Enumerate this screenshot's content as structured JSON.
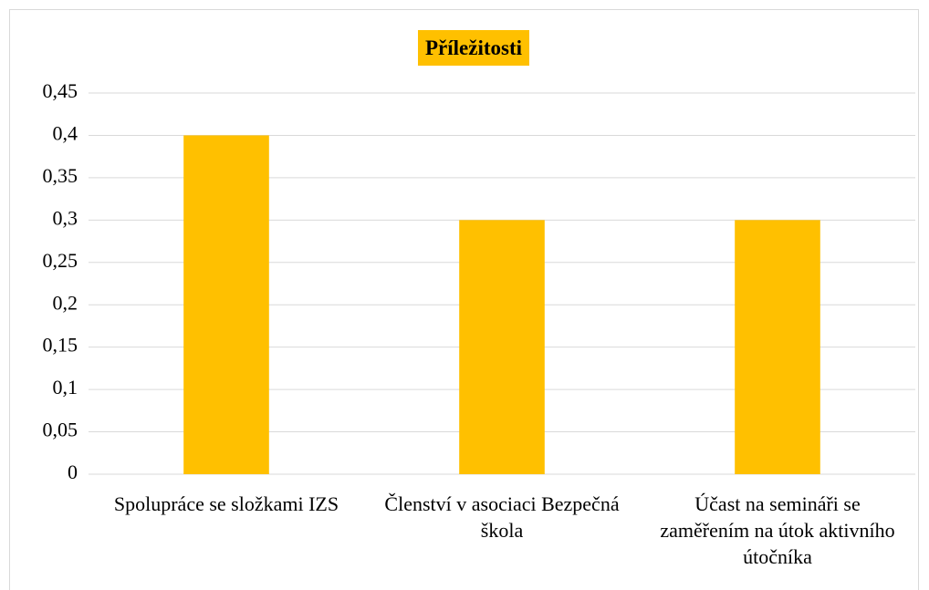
{
  "chart_data": {
    "type": "bar",
    "title": "Příležitosti",
    "categories": [
      "Spolupráce se složkami IZS",
      "Členství v asociaci Bezpečná škola",
      "Účast na semináři se zaměřením na útok aktivního útočníka"
    ],
    "values": [
      0.4,
      0.3,
      0.3
    ],
    "color": "#ffc000",
    "ylim": [
      0,
      0.45
    ],
    "yticks": [
      0,
      {
        "value": 0.05,
        "label": "0,05"
      },
      {
        "value": 0.1,
        "label": "0,1"
      },
      {
        "value": 0.15,
        "label": "0,15"
      },
      {
        "value": 0.2,
        "label": "0,2"
      },
      {
        "value": 0.25,
        "label": "0,25"
      },
      {
        "value": 0.3,
        "label": "0,3"
      },
      {
        "value": 0.35,
        "label": "0,35"
      },
      {
        "value": 0.4,
        "label": "0,4"
      },
      {
        "value": 0.45,
        "label": "0,45"
      }
    ],
    "grid": true
  }
}
